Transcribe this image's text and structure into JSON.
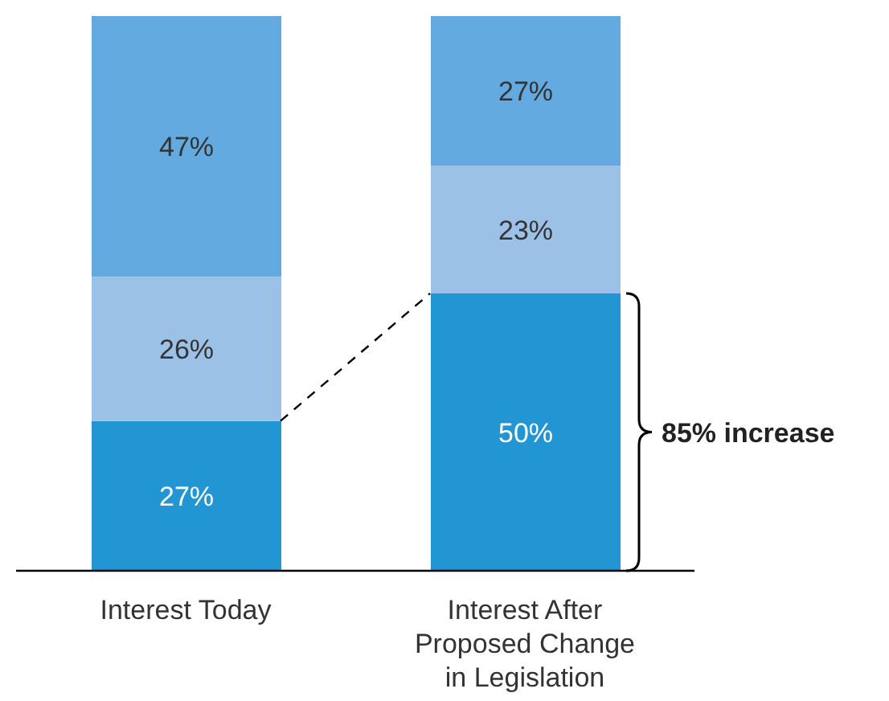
{
  "chart_data": {
    "type": "bar",
    "stacked": true,
    "legend": false,
    "grid": false,
    "categories": [
      "Interest Today",
      "Interest After Proposed Change in Legislation"
    ],
    "series": [
      {
        "color": "#2196d3",
        "values": [
          27,
          50
        ],
        "value_labels": [
          "27%",
          "50%"
        ]
      },
      {
        "color": "#9bc1e7",
        "values": [
          26,
          23
        ],
        "value_labels": [
          "26%",
          "23%"
        ]
      },
      {
        "color": "#62aadf",
        "values": [
          47,
          27
        ],
        "value_labels": [
          "47%",
          "27%"
        ]
      }
    ],
    "annotations": [
      "85% increase"
    ]
  }
}
